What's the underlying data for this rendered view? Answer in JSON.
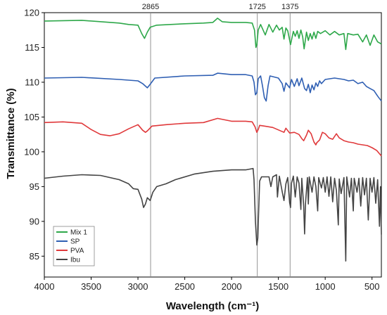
{
  "chart_data": {
    "type": "line",
    "xlabel": "Wavelength (cm⁻¹)",
    "ylabel": "Transmittance (%)",
    "xlim": [
      4000,
      400
    ],
    "ylim": [
      82,
      120
    ],
    "x_ticks": [
      4000,
      3500,
      3000,
      2500,
      2000,
      1500,
      1000,
      500
    ],
    "y_ticks": [
      85,
      90,
      95,
      100,
      105,
      110,
      115,
      120
    ],
    "grid": false,
    "legend_position": "bottom-left",
    "reference_lines": [
      {
        "x": 2865,
        "label": "2865"
      },
      {
        "x": 1725,
        "label": "1725"
      },
      {
        "x": 1375,
        "label": "1375"
      }
    ],
    "series": [
      {
        "name": "Mix 1",
        "color": "#2ea84a",
        "points": [
          [
            4000,
            118.8
          ],
          [
            3600,
            118.9
          ],
          [
            3200,
            118.5
          ],
          [
            3100,
            118.3
          ],
          [
            3000,
            118.2
          ],
          [
            2960,
            117.0
          ],
          [
            2930,
            116.3
          ],
          [
            2900,
            117.2
          ],
          [
            2870,
            117.9
          ],
          [
            2800,
            118.2
          ],
          [
            2500,
            118.4
          ],
          [
            2300,
            118.5
          ],
          [
            2200,
            118.6
          ],
          [
            2150,
            119.2
          ],
          [
            2100,
            118.7
          ],
          [
            2000,
            118.6
          ],
          [
            1850,
            118.6
          ],
          [
            1780,
            118.5
          ],
          [
            1755,
            117.5
          ],
          [
            1740,
            115.0
          ],
          [
            1730,
            115.4
          ],
          [
            1715,
            117.5
          ],
          [
            1690,
            118.3
          ],
          [
            1640,
            116.8
          ],
          [
            1600,
            118.3
          ],
          [
            1560,
            117.2
          ],
          [
            1520,
            118.2
          ],
          [
            1490,
            117.5
          ],
          [
            1460,
            117.9
          ],
          [
            1440,
            116.2
          ],
          [
            1420,
            117.8
          ],
          [
            1400,
            117.4
          ],
          [
            1370,
            115.4
          ],
          [
            1340,
            117.3
          ],
          [
            1320,
            116.6
          ],
          [
            1300,
            117.4
          ],
          [
            1280,
            116.3
          ],
          [
            1260,
            117.5
          ],
          [
            1240,
            116.5
          ],
          [
            1225,
            114.8
          ],
          [
            1200,
            117.2
          ],
          [
            1180,
            116.0
          ],
          [
            1160,
            117.0
          ],
          [
            1140,
            116.2
          ],
          [
            1120,
            117.2
          ],
          [
            1100,
            116.3
          ],
          [
            1080,
            117.3
          ],
          [
            1050,
            117.0
          ],
          [
            1000,
            117.4
          ],
          [
            950,
            116.8
          ],
          [
            900,
            117.3
          ],
          [
            850,
            116.8
          ],
          [
            800,
            117.0
          ],
          [
            780,
            114.7
          ],
          [
            760,
            117.0
          ],
          [
            700,
            116.8
          ],
          [
            650,
            116.9
          ],
          [
            600,
            115.8
          ],
          [
            560,
            116.8
          ],
          [
            520,
            115.3
          ],
          [
            480,
            116.8
          ],
          [
            440,
            115.8
          ],
          [
            400,
            115.5
          ]
        ]
      },
      {
        "name": "SP",
        "color": "#2f5fb3",
        "points": [
          [
            4000,
            110.6
          ],
          [
            3600,
            110.7
          ],
          [
            3200,
            110.4
          ],
          [
            3000,
            110.2
          ],
          [
            2950,
            109.8
          ],
          [
            2900,
            109.2
          ],
          [
            2870,
            109.7
          ],
          [
            2820,
            110.6
          ],
          [
            2500,
            110.9
          ],
          [
            2200,
            111.0
          ],
          [
            2150,
            111.3
          ],
          [
            2000,
            111.1
          ],
          [
            1850,
            111.1
          ],
          [
            1780,
            110.9
          ],
          [
            1760,
            110.0
          ],
          [
            1745,
            108.2
          ],
          [
            1730,
            108.5
          ],
          [
            1715,
            110.5
          ],
          [
            1690,
            110.9
          ],
          [
            1670,
            109.5
          ],
          [
            1650,
            107.8
          ],
          [
            1630,
            107.3
          ],
          [
            1610,
            109.5
          ],
          [
            1590,
            110.9
          ],
          [
            1500,
            110.6
          ],
          [
            1460,
            109.8
          ],
          [
            1440,
            108.7
          ],
          [
            1420,
            109.9
          ],
          [
            1380,
            109.2
          ],
          [
            1360,
            110.4
          ],
          [
            1330,
            109.4
          ],
          [
            1300,
            110.5
          ],
          [
            1280,
            109.5
          ],
          [
            1250,
            110.6
          ],
          [
            1220,
            109.1
          ],
          [
            1200,
            108.8
          ],
          [
            1180,
            109.7
          ],
          [
            1160,
            108.5
          ],
          [
            1140,
            109.6
          ],
          [
            1120,
            108.9
          ],
          [
            1100,
            109.9
          ],
          [
            1080,
            109.4
          ],
          [
            1060,
            110.2
          ],
          [
            1040,
            109.8
          ],
          [
            1000,
            110.4
          ],
          [
            950,
            110.5
          ],
          [
            900,
            110.6
          ],
          [
            850,
            110.5
          ],
          [
            800,
            110.4
          ],
          [
            750,
            110.2
          ],
          [
            700,
            110.3
          ],
          [
            650,
            109.8
          ],
          [
            600,
            110.0
          ],
          [
            560,
            109.4
          ],
          [
            520,
            109.1
          ],
          [
            480,
            108.8
          ],
          [
            440,
            108.0
          ],
          [
            400,
            107.3
          ]
        ]
      },
      {
        "name": "PVA",
        "color": "#e0393b",
        "points": [
          [
            4000,
            104.2
          ],
          [
            3800,
            104.3
          ],
          [
            3600,
            104.1
          ],
          [
            3500,
            103.2
          ],
          [
            3400,
            102.5
          ],
          [
            3300,
            102.3
          ],
          [
            3200,
            102.6
          ],
          [
            3100,
            103.3
          ],
          [
            3000,
            103.9
          ],
          [
            2950,
            103.1
          ],
          [
            2920,
            102.8
          ],
          [
            2900,
            103.0
          ],
          [
            2850,
            103.7
          ],
          [
            2700,
            103.9
          ],
          [
            2500,
            104.1
          ],
          [
            2300,
            104.2
          ],
          [
            2150,
            104.8
          ],
          [
            2000,
            104.4
          ],
          [
            1850,
            104.4
          ],
          [
            1780,
            104.3
          ],
          [
            1750,
            103.6
          ],
          [
            1730,
            102.8
          ],
          [
            1715,
            103.2
          ],
          [
            1700,
            103.8
          ],
          [
            1650,
            103.7
          ],
          [
            1560,
            103.5
          ],
          [
            1440,
            102.8
          ],
          [
            1420,
            103.4
          ],
          [
            1380,
            102.7
          ],
          [
            1330,
            102.8
          ],
          [
            1280,
            102.5
          ],
          [
            1250,
            101.9
          ],
          [
            1230,
            101.6
          ],
          [
            1200,
            102.4
          ],
          [
            1180,
            103.1
          ],
          [
            1150,
            102.6
          ],
          [
            1120,
            101.4
          ],
          [
            1100,
            101.0
          ],
          [
            1090,
            101.3
          ],
          [
            1060,
            101.7
          ],
          [
            1030,
            102.8
          ],
          [
            1000,
            102.6
          ],
          [
            960,
            102.0
          ],
          [
            920,
            101.8
          ],
          [
            880,
            102.6
          ],
          [
            850,
            102.0
          ],
          [
            800,
            101.6
          ],
          [
            750,
            101.4
          ],
          [
            700,
            101.3
          ],
          [
            650,
            101.1
          ],
          [
            600,
            101.0
          ],
          [
            550,
            100.9
          ],
          [
            500,
            100.6
          ],
          [
            450,
            100.2
          ],
          [
            400,
            99.4
          ]
        ]
      },
      {
        "name": "Ibu",
        "color": "#444444",
        "points": [
          [
            4000,
            96.2
          ],
          [
            3800,
            96.5
          ],
          [
            3600,
            96.7
          ],
          [
            3400,
            96.6
          ],
          [
            3200,
            96.0
          ],
          [
            3100,
            95.4
          ],
          [
            3050,
            94.7
          ],
          [
            3000,
            94.6
          ],
          [
            2960,
            93.2
          ],
          [
            2940,
            92.0
          ],
          [
            2920,
            92.5
          ],
          [
            2900,
            93.4
          ],
          [
            2870,
            93.0
          ],
          [
            2840,
            94.2
          ],
          [
            2800,
            95.0
          ],
          [
            2700,
            95.4
          ],
          [
            2600,
            96.0
          ],
          [
            2400,
            96.8
          ],
          [
            2200,
            97.2
          ],
          [
            2000,
            97.4
          ],
          [
            1850,
            97.4
          ],
          [
            1770,
            97.6
          ],
          [
            1760,
            96.0
          ],
          [
            1745,
            90.0
          ],
          [
            1730,
            86.6
          ],
          [
            1720,
            87.6
          ],
          [
            1710,
            91.8
          ],
          [
            1700,
            95.8
          ],
          [
            1680,
            96.4
          ],
          [
            1600,
            96.4
          ],
          [
            1580,
            95.0
          ],
          [
            1560,
            96.4
          ],
          [
            1520,
            96.7
          ],
          [
            1510,
            93.5
          ],
          [
            1490,
            96.5
          ],
          [
            1460,
            94.3
          ],
          [
            1440,
            93.0
          ],
          [
            1420,
            95.4
          ],
          [
            1400,
            96.3
          ],
          [
            1380,
            92.7
          ],
          [
            1370,
            92.0
          ],
          [
            1360,
            95.5
          ],
          [
            1340,
            96.5
          ],
          [
            1320,
            93.5
          ],
          [
            1300,
            96.4
          ],
          [
            1280,
            95.5
          ],
          [
            1260,
            91.7
          ],
          [
            1250,
            96.2
          ],
          [
            1230,
            92.2
          ],
          [
            1220,
            88.2
          ],
          [
            1210,
            92.6
          ],
          [
            1190,
            96.3
          ],
          [
            1180,
            92.5
          ],
          [
            1170,
            96.4
          ],
          [
            1140,
            94.2
          ],
          [
            1120,
            96.4
          ],
          [
            1100,
            95.0
          ],
          [
            1080,
            91.5
          ],
          [
            1070,
            96.3
          ],
          [
            1040,
            94.8
          ],
          [
            1020,
            96.3
          ],
          [
            1000,
            94.2
          ],
          [
            980,
            96.4
          ],
          [
            960,
            93.6
          ],
          [
            940,
            96.4
          ],
          [
            920,
            92.8
          ],
          [
            900,
            96.2
          ],
          [
            880,
            94.4
          ],
          [
            860,
            89.5
          ],
          [
            850,
            96.1
          ],
          [
            830,
            94.0
          ],
          [
            800,
            96.3
          ],
          [
            780,
            84.3
          ],
          [
            770,
            96.4
          ],
          [
            740,
            93.5
          ],
          [
            720,
            96.2
          ],
          [
            700,
            91.5
          ],
          [
            690,
            96.2
          ],
          [
            660,
            94.2
          ],
          [
            640,
            96.2
          ],
          [
            620,
            92.2
          ],
          [
            600,
            96.3
          ],
          [
            580,
            93.8
          ],
          [
            560,
            96.2
          ],
          [
            540,
            90.2
          ],
          [
            520,
            96.2
          ],
          [
            500,
            94.2
          ],
          [
            480,
            96.3
          ],
          [
            460,
            92.6
          ],
          [
            440,
            96.0
          ],
          [
            420,
            89.3
          ],
          [
            410,
            95.0
          ],
          [
            400,
            88.1
          ]
        ]
      }
    ]
  }
}
